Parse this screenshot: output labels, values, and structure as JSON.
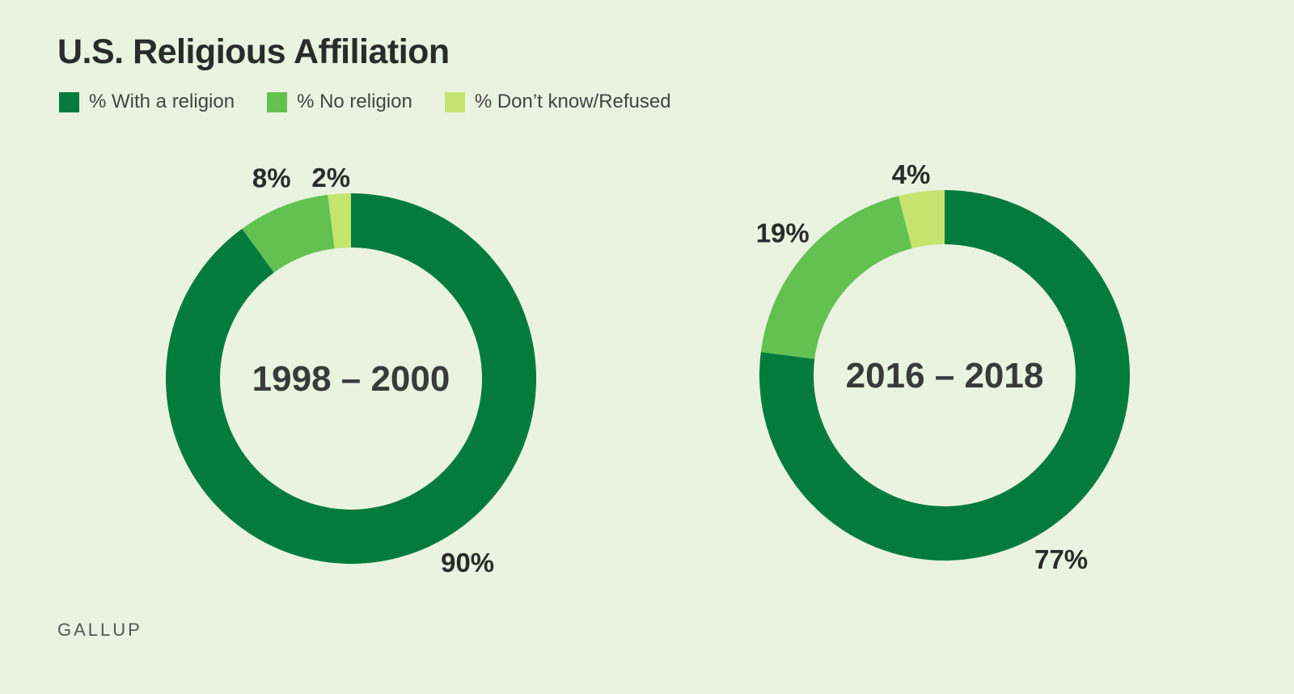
{
  "title": "U.S. Religious Affiliation",
  "source": "GALLUP",
  "legend": [
    {
      "label": "% With a religion",
      "color": "#037b3f"
    },
    {
      "label": "% No religion",
      "color": "#63c152"
    },
    {
      "label": "% Don’t know/Refused",
      "color": "#c5e56f"
    }
  ],
  "chart_data": [
    {
      "type": "pie",
      "variant": "donut",
      "center_label": "1998 – 2000",
      "categories": [
        "% With a religion",
        "% No religion",
        "% Don’t know/Refused"
      ],
      "values": [
        90,
        8,
        2
      ],
      "labels": [
        "90%",
        "8%",
        "2%"
      ]
    },
    {
      "type": "pie",
      "variant": "donut",
      "center_label": "2016 – 2018",
      "categories": [
        "% With a religion",
        "% No religion",
        "% Don’t know/Refused"
      ],
      "values": [
        77,
        19,
        4
      ],
      "labels": [
        "77%",
        "19%",
        "4%"
      ]
    }
  ]
}
